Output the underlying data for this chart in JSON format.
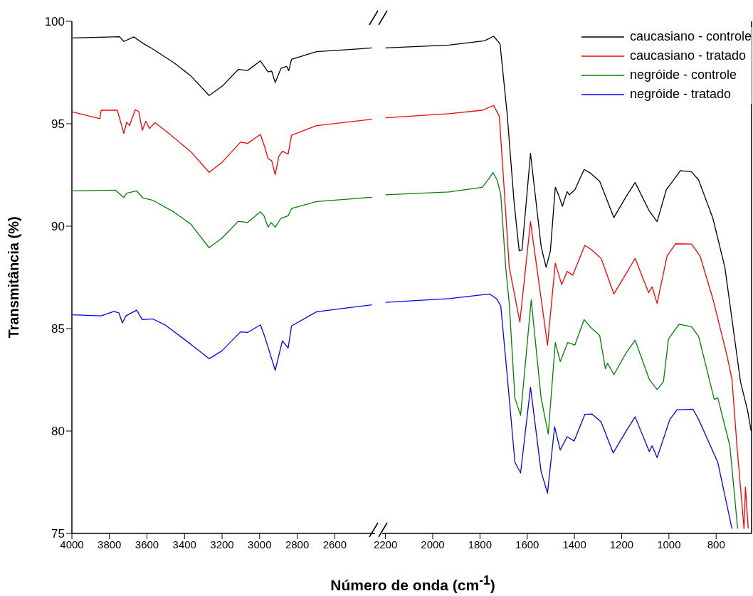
{
  "chart_data": [
    {
      "type": "line",
      "ylabel": "Transmitância (%)",
      "xlabel": "Número de onda (cm$^{-1}$)",
      "xlim": [
        4000,
        2370
      ],
      "xticks": [
        4000,
        3800,
        3600,
        3400,
        3200,
        3000,
        2800,
        2600
      ],
      "ylim": [
        75,
        100
      ],
      "yticks": [
        75,
        80,
        85,
        90,
        95,
        100
      ],
      "legend": false,
      "series": [
        {
          "color": "#000000",
          "x": [
            3996,
            3746,
            3723,
            3670,
            3617,
            3576,
            3455,
            3367,
            3269,
            3201,
            3114,
            3064,
            2996,
            2955,
            2936,
            2917,
            2886,
            2856,
            2845,
            2830,
            2697,
            2402
          ],
          "values": [
            99.19,
            99.25,
            99.02,
            99.24,
            98.9,
            98.69,
            97.97,
            97.34,
            96.38,
            96.82,
            97.65,
            97.6,
            98.07,
            97.53,
            97.57,
            97.01,
            97.71,
            97.8,
            97.59,
            98.15,
            98.52,
            98.7
          ]
        },
        {
          "color": "#ff0000",
          "x": [
            3996,
            3851,
            3844,
            3758,
            3723,
            3708,
            3693,
            3663,
            3644,
            3625,
            3606,
            3587,
            3557,
            3504,
            3367,
            3269,
            3201,
            3102,
            3064,
            2996,
            2973,
            2955,
            2936,
            2917,
            2898,
            2879,
            2848,
            2830,
            2697,
            2402
          ],
          "values": [
            95.58,
            95.25,
            95.66,
            95.66,
            94.52,
            95.08,
            94.91,
            95.68,
            95.6,
            94.68,
            95.12,
            94.77,
            95.05,
            94.68,
            93.64,
            92.63,
            93.11,
            94.1,
            94.04,
            94.48,
            93.87,
            93.29,
            93.2,
            92.51,
            93.4,
            93.66,
            93.52,
            94.44,
            94.91,
            95.22
          ]
        },
        {
          "color": "#008000",
          "x": [
            3996,
            3769,
            3723,
            3708,
            3655,
            3621,
            3568,
            3455,
            3367,
            3269,
            3201,
            3114,
            3064,
            2996,
            2977,
            2955,
            2939,
            2917,
            2886,
            2848,
            2830,
            2697,
            2402
          ],
          "values": [
            91.72,
            91.76,
            91.4,
            91.61,
            91.72,
            91.38,
            91.26,
            90.68,
            90.1,
            88.95,
            89.41,
            90.24,
            90.18,
            90.7,
            90.51,
            89.95,
            90.18,
            89.95,
            90.39,
            90.51,
            90.86,
            91.2,
            91.41
          ]
        },
        {
          "color": "#0000ff",
          "x": [
            3996,
            3845,
            3776,
            3750,
            3731,
            3712,
            3682,
            3655,
            3625,
            3568,
            3504,
            3367,
            3269,
            3201,
            3102,
            3064,
            2996,
            2973,
            2951,
            2917,
            2879,
            2848,
            2830,
            2697,
            2402
          ],
          "values": [
            85.67,
            85.62,
            85.84,
            85.77,
            85.28,
            85.62,
            85.77,
            85.9,
            85.44,
            85.47,
            85.18,
            84.24,
            83.53,
            83.91,
            84.84,
            84.81,
            85.18,
            84.61,
            83.97,
            82.96,
            84.4,
            84.05,
            85.13,
            85.82,
            86.16
          ]
        }
      ]
    },
    {
      "type": "line",
      "xlim": [
        2220,
        650
      ],
      "xticks": [
        2200,
        2000,
        1800,
        1600,
        1400,
        1200,
        1000,
        800
      ],
      "ylim": [
        75,
        100
      ],
      "yticks": [
        75,
        80,
        85,
        90,
        95,
        100
      ],
      "tick_labels": "x",
      "legend": "top right",
      "series": [
        {
          "name": "caucasiano - controle",
          "color": "#000000",
          "x": [
            2200,
            1931,
            1781,
            1742,
            1715,
            1685,
            1655,
            1634,
            1622,
            1586,
            1541,
            1520,
            1502,
            1481,
            1466,
            1451,
            1431,
            1422,
            1398,
            1359,
            1332,
            1293,
            1233,
            1182,
            1143,
            1083,
            1050,
            1011,
            951,
            904,
            874,
            814,
            763,
            697,
            667,
            652
          ],
          "values": [
            98.7,
            98.84,
            99.05,
            99.27,
            98.9,
            95.49,
            91.09,
            88.8,
            88.83,
            93.55,
            89.0,
            87.99,
            88.78,
            91.9,
            91.49,
            90.97,
            91.69,
            91.53,
            91.78,
            92.77,
            92.59,
            92.19,
            90.42,
            91.43,
            92.13,
            90.74,
            90.22,
            91.78,
            92.71,
            92.65,
            92.25,
            90.39,
            87.99,
            82.41,
            81.0,
            80.0
          ]
        },
        {
          "name": "caucasiano - tratado",
          "color": "#ff0000",
          "x": [
            2200,
            1931,
            1790,
            1742,
            1718,
            1700,
            1676,
            1631,
            1586,
            1514,
            1481,
            1454,
            1431,
            1407,
            1356,
            1332,
            1287,
            1233,
            1182,
            1143,
            1086,
            1071,
            1050,
            1008,
            972,
            904,
            868,
            814,
            754,
            733,
            712,
            682,
            676,
            664
          ],
          "values": [
            95.29,
            95.49,
            95.66,
            95.89,
            95.37,
            92.25,
            87.99,
            85.32,
            90.22,
            84.2,
            88.19,
            87.15,
            87.79,
            87.61,
            89.06,
            88.89,
            88.43,
            86.69,
            87.67,
            88.43,
            86.75,
            87.04,
            86.23,
            88.54,
            89.14,
            89.13,
            88.54,
            86.46,
            83.68,
            82.52,
            79.28,
            75.24,
            77.26,
            75.24
          ]
        },
        {
          "name": "negróide - controle",
          "color": "#008000",
          "x": [
            2200,
            1931,
            1790,
            1760,
            1745,
            1727,
            1712,
            1691,
            1676,
            1652,
            1628,
            1583,
            1541,
            1511,
            1481,
            1460,
            1428,
            1398,
            1359,
            1332,
            1293,
            1269,
            1260,
            1233,
            1182,
            1143,
            1083,
            1050,
            1023,
            1002,
            957,
            904,
            874,
            808,
            793,
            742,
            709
          ],
          "values": [
            91.53,
            91.67,
            91.9,
            92.36,
            92.62,
            92.25,
            91.55,
            87.99,
            86.23,
            81.6,
            80.76,
            86.4,
            81.6,
            79.86,
            84.32,
            83.39,
            84.32,
            84.2,
            85.44,
            85.07,
            84.66,
            83.04,
            83.31,
            82.75,
            83.8,
            84.43,
            82.52,
            82.02,
            82.41,
            84.49,
            85.21,
            85.09,
            84.61,
            81.54,
            81.62,
            79.28,
            75.23
          ]
        },
        {
          "name": "negróide - tratado",
          "color": "#0000ff",
          "x": [
            2200,
            1931,
            1760,
            1730,
            1712,
            1685,
            1652,
            1628,
            1586,
            1541,
            1514,
            1484,
            1460,
            1431,
            1401,
            1356,
            1326,
            1287,
            1236,
            1182,
            1143,
            1083,
            1071,
            1050,
            996,
            966,
            898,
            874,
            793,
            733
          ],
          "values": [
            86.28,
            86.46,
            86.69,
            86.46,
            86.11,
            82.75,
            78.47,
            77.95,
            82.14,
            78.01,
            76.97,
            80.21,
            79.07,
            79.72,
            79.51,
            80.81,
            80.83,
            80.44,
            78.93,
            79.98,
            80.69,
            78.99,
            79.28,
            78.7,
            80.56,
            81.04,
            81.06,
            80.56,
            78.47,
            75.23
          ]
        }
      ]
    }
  ]
}
